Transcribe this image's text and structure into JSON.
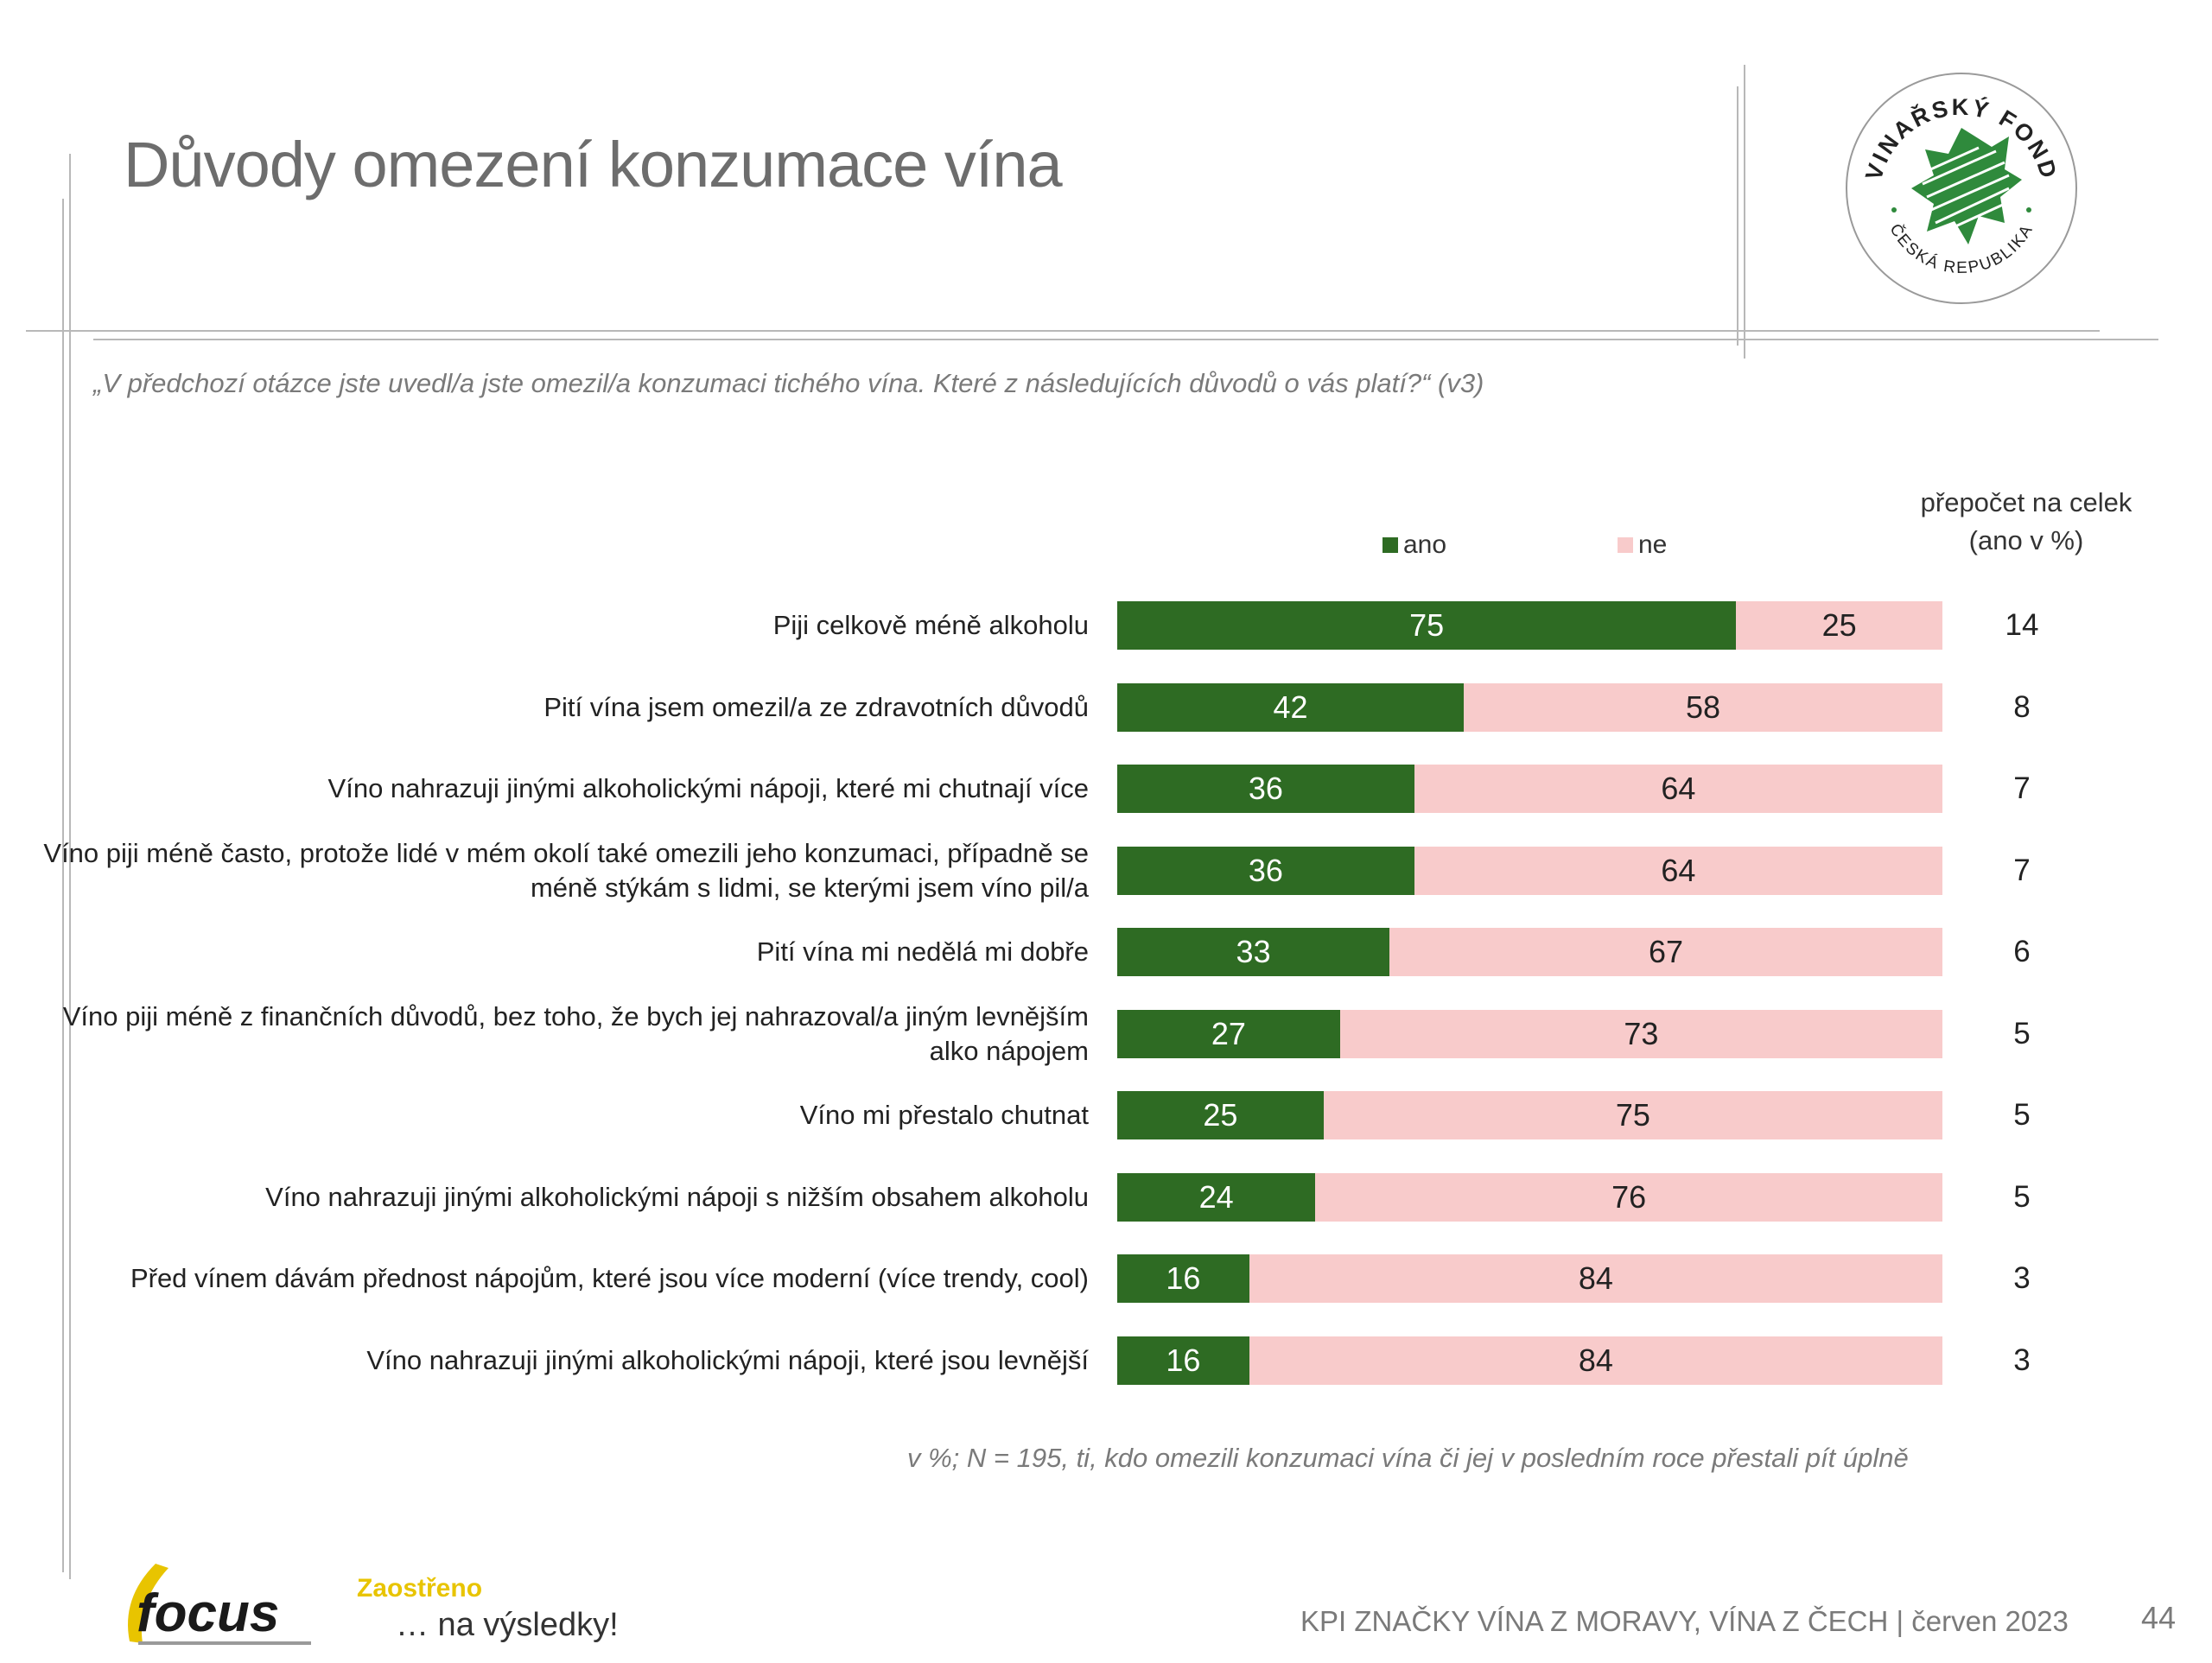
{
  "header": {
    "title": "Důvody omezení konzumace vína",
    "question": "„V předchozí otázce jste uvedl/a jste omezil/a konzumaci tichého vína. Které z následujících důvodů o vás platí?“ (v3)"
  },
  "logo_fond": {
    "top_text": "VINAŘSKÝ FOND",
    "bottom_text": "ČESKÁ REPUBLIKA"
  },
  "legend": {
    "yes_label": "ano",
    "no_label": "ne"
  },
  "recalc_header": {
    "line1": "přepočet na celek",
    "line2": "(ano v %)"
  },
  "colors": {
    "yes": "#2e6b23",
    "no": "#f8cbcb"
  },
  "chart_data": {
    "type": "bar",
    "orientation": "horizontal",
    "stacked": true,
    "categories": [
      "Piji celkově méně alkoholu",
      "Pití vína jsem omezil/a ze zdravotních důvodů",
      "Víno nahrazuji jinými alkoholickými nápoji, které mi chutnají více",
      "Víno piji méně často, protože lidé v mém okolí také omezili jeho konzumaci, případně se méně stýkám s lidmi, se kterými jsem víno pil/a",
      "Pití vína mi nedělá mi dobře",
      "Víno piji méně z finančních důvodů, bez toho, že bych jej nahrazoval/a jiným levnějším alko nápojem",
      "Víno mi přestalo chutnat",
      "Víno nahrazuji jinými alkoholickými nápoji s nižším obsahem alkoholu",
      "Před vínem dávám přednost nápojům, které jsou více moderní (více trendy, cool)",
      "Víno nahrazuji jinými alkoholickými nápoji, které jsou levnější"
    ],
    "series": [
      {
        "name": "ano",
        "values": [
          75,
          42,
          36,
          36,
          33,
          27,
          25,
          24,
          16,
          16
        ]
      },
      {
        "name": "ne",
        "values": [
          25,
          58,
          64,
          64,
          67,
          73,
          75,
          76,
          84,
          84
        ]
      }
    ],
    "recalc_total": [
      14,
      8,
      7,
      7,
      6,
      5,
      5,
      5,
      3,
      3
    ],
    "xlim": [
      0,
      100
    ],
    "legend_position": "top"
  },
  "note": "v %; N = 195, ti, kdo omezili konzumaci vína či jej v posledním roce přestali pít úplně",
  "footer": {
    "brand": "focus",
    "slogan_line1": "Zaostřeno",
    "slogan_line2": "… na výsledky!",
    "report": "KPI ZNAČKY VÍNA Z MORAVY, VÍNA Z ČECH | červen 2023",
    "page": "44"
  }
}
